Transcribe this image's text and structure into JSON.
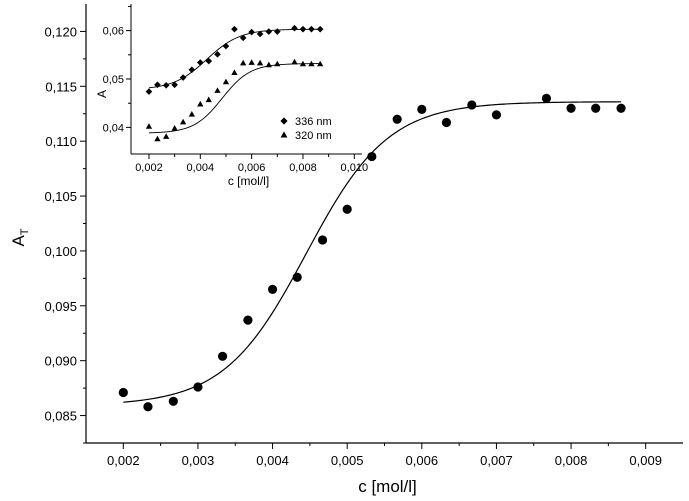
{
  "chart_data": [
    {
      "type": "scatter",
      "xlabel": "c [mol/l]",
      "ylabel": "A",
      "ylabel_subscript": "T",
      "xlim": [
        0.0015,
        0.0095
      ],
      "ylim": [
        0.0825,
        0.1225
      ],
      "x_ticks": [
        0.002,
        0.003,
        0.004,
        0.005,
        0.006,
        0.007,
        0.008,
        0.009
      ],
      "x_tick_labels": [
        "0,002",
        "0,003",
        "0,004",
        "0,005",
        "0,006",
        "0,007",
        "0,008",
        "0,009"
      ],
      "y_ticks": [
        0.085,
        0.09,
        0.095,
        0.1,
        0.105,
        0.11,
        0.115,
        0.12
      ],
      "y_tick_labels": [
        "0,085",
        "0,090",
        "0,095",
        "0,100",
        "0,105",
        "0,110",
        "0,115",
        "0,120"
      ],
      "grid": false,
      "series": [
        {
          "marker": "circle",
          "color": "#000000",
          "x": [
            0.002,
            0.00233,
            0.00267,
            0.003,
            0.00333,
            0.00367,
            0.004,
            0.00433,
            0.00467,
            0.005,
            0.00533,
            0.00567,
            0.006,
            0.00633,
            0.00667,
            0.007,
            0.00767,
            0.008,
            0.00833,
            0.00867
          ],
          "y": [
            0.0871,
            0.0858,
            0.0863,
            0.0876,
            0.0904,
            0.0937,
            0.0965,
            0.0976,
            0.101,
            0.1038,
            0.1086,
            0.112,
            0.1129,
            0.1117,
            0.1133,
            0.1124,
            0.1139,
            0.113,
            0.113,
            0.113
          ]
        }
      ],
      "fit_curve": {
        "model": "logistic",
        "bottom": 0.0859,
        "top": 0.1136,
        "center": 0.00445,
        "width": 0.00055,
        "x_range": [
          0.002,
          0.00867
        ],
        "color": "#000000"
      }
    },
    {
      "type": "scatter",
      "inset": true,
      "xlabel": "c [mol/l]",
      "ylabel": "A",
      "xlim": [
        0.0013,
        0.0103
      ],
      "ylim": [
        0.0345,
        0.0655
      ],
      "x_ticks": [
        0.002,
        0.004,
        0.006,
        0.008,
        0.01
      ],
      "x_tick_labels": [
        "0,002",
        "0,004",
        "0,006",
        "0,008",
        "0,010"
      ],
      "y_ticks": [
        0.04,
        0.05,
        0.06
      ],
      "y_tick_labels": [
        "0,04",
        "0,05",
        "0,06"
      ],
      "grid": false,
      "legend_position": "lower-right",
      "series": [
        {
          "name": "336 nm",
          "marker": "diamond",
          "color": "#000000",
          "x": [
            0.002,
            0.00233,
            0.00267,
            0.003,
            0.00333,
            0.00367,
            0.004,
            0.00433,
            0.00467,
            0.005,
            0.00533,
            0.00567,
            0.006,
            0.00633,
            0.00667,
            0.007,
            0.00767,
            0.008,
            0.00833,
            0.00867
          ],
          "y": [
            0.0474,
            0.0488,
            0.0487,
            0.0488,
            0.0503,
            0.0519,
            0.0534,
            0.0537,
            0.0551,
            0.0568,
            0.0603,
            0.0585,
            0.0597,
            0.0593,
            0.0598,
            0.0598,
            0.0605,
            0.0603,
            0.0603,
            0.0603
          ],
          "fit": {
            "model": "logistic",
            "bottom": 0.0478,
            "top": 0.0603,
            "center": 0.00425,
            "width": 0.00065,
            "x_range": [
              0.002,
              0.00867
            ]
          }
        },
        {
          "name": "320 nm",
          "marker": "triangle",
          "color": "#000000",
          "x": [
            0.002,
            0.00233,
            0.00267,
            0.003,
            0.00333,
            0.00367,
            0.004,
            0.00433,
            0.00467,
            0.005,
            0.00533,
            0.00567,
            0.006,
            0.00633,
            0.00667,
            0.007,
            0.00767,
            0.008,
            0.00833,
            0.00867
          ],
          "y": [
            0.0402,
            0.0376,
            0.0381,
            0.0398,
            0.0411,
            0.0427,
            0.0448,
            0.0457,
            0.0476,
            0.0494,
            0.0513,
            0.0533,
            0.0534,
            0.0533,
            0.0529,
            0.0531,
            0.0535,
            0.0531,
            0.0531,
            0.0531
          ],
          "fit": {
            "model": "logistic",
            "bottom": 0.0388,
            "top": 0.0532,
            "center": 0.00485,
            "width": 0.00055,
            "x_range": [
              0.002,
              0.00867
            ]
          }
        }
      ]
    }
  ]
}
